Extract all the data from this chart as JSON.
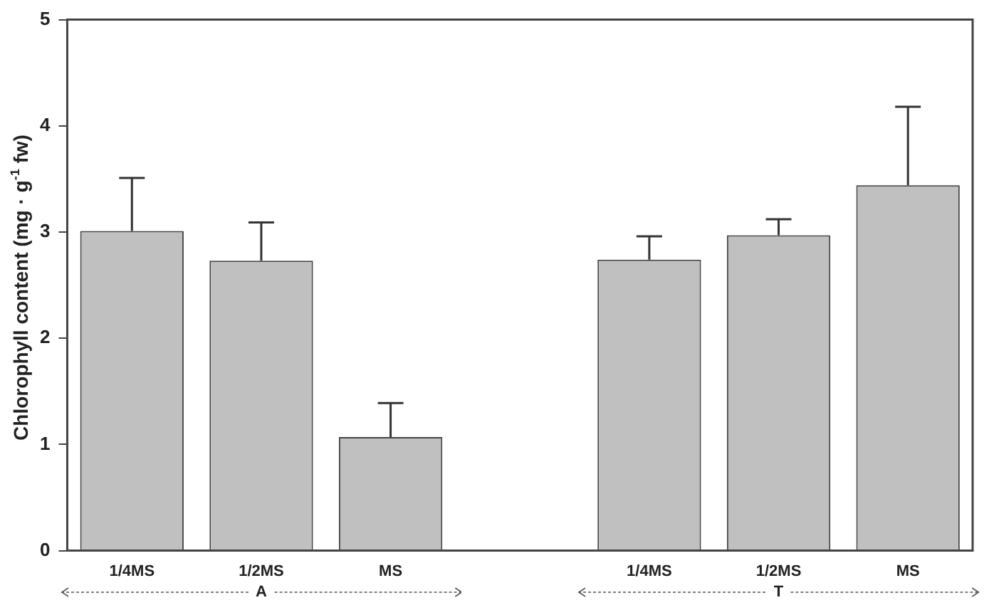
{
  "chart_data": {
    "type": "bar",
    "ylabel": "Chlorophyll content (mg · g$^{-1}$ fw)",
    "categories": [
      "1/4MS",
      "1/2MS",
      "MS",
      null,
      "1/4MS",
      "1/2MS",
      "MS"
    ],
    "values": [
      3.01,
      2.73,
      1.07,
      null,
      2.74,
      2.97,
      3.44
    ],
    "errors": [
      [
        3.01,
        3.51
      ],
      [
        2.73,
        3.09
      ],
      [
        1.07,
        1.39
      ],
      null,
      [
        2.74,
        2.96
      ],
      [
        2.97,
        3.12
      ],
      [
        3.44,
        4.18
      ]
    ],
    "color": "#c0c0c0",
    "ylim": [
      0,
      5
    ],
    "yticks": [
      0,
      1,
      2,
      3,
      4,
      5
    ],
    "annotations": [
      "A",
      "T"
    ],
    "grid": false,
    "legend": false
  }
}
